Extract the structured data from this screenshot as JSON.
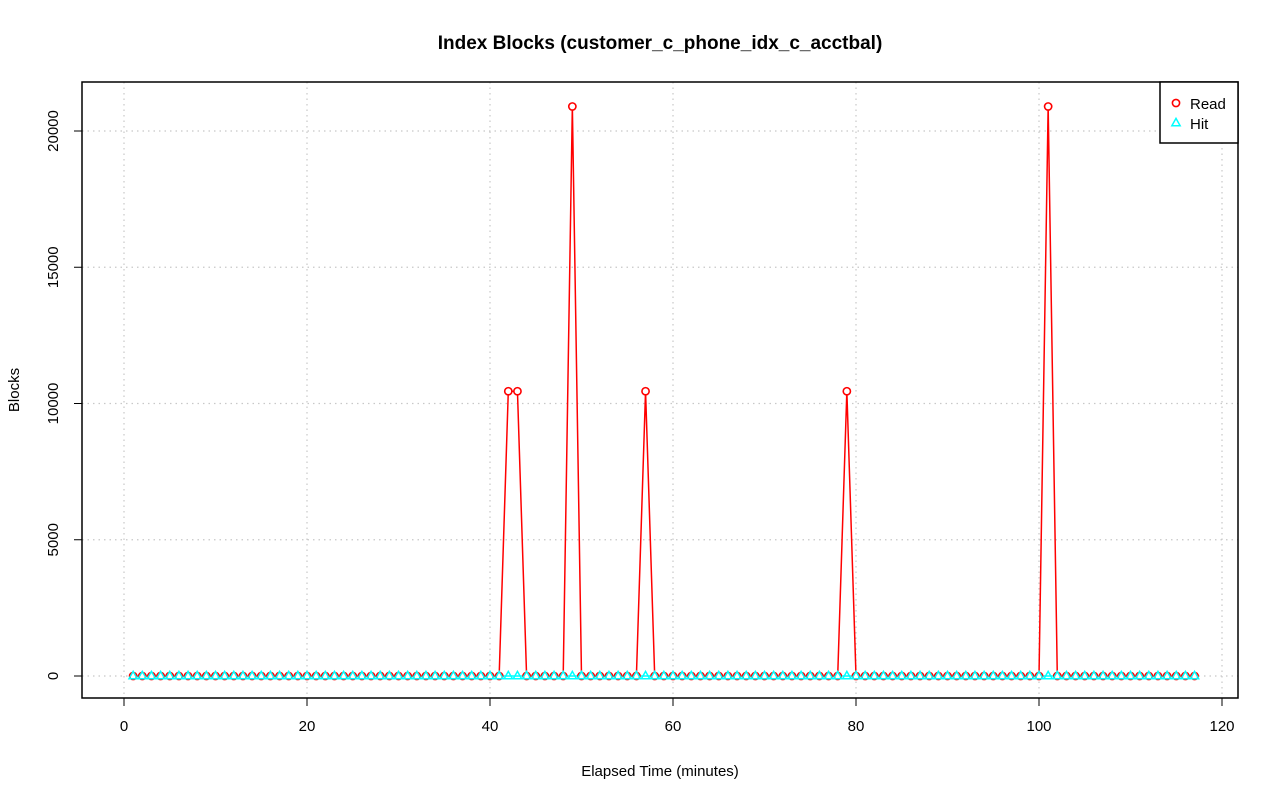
{
  "chart_data": {
    "type": "line",
    "title": "Index Blocks (customer_c_phone_idx_c_acctbal)",
    "xlabel": "Elapsed Time (minutes)",
    "ylabel": "Blocks",
    "xlim": [
      0,
      120
    ],
    "ylim": [
      0,
      21000
    ],
    "x_ticks": [
      0,
      20,
      40,
      60,
      80,
      100,
      120
    ],
    "y_ticks": [
      0,
      5000,
      10000,
      15000,
      20000
    ],
    "grid": true,
    "legend_position": "top-right",
    "x": [
      1,
      2,
      3,
      4,
      5,
      6,
      7,
      8,
      9,
      10,
      11,
      12,
      13,
      14,
      15,
      16,
      17,
      18,
      19,
      20,
      21,
      22,
      23,
      24,
      25,
      26,
      27,
      28,
      29,
      30,
      31,
      32,
      33,
      34,
      35,
      36,
      37,
      38,
      39,
      40,
      41,
      42,
      43,
      44,
      45,
      46,
      47,
      48,
      49,
      50,
      51,
      52,
      53,
      54,
      55,
      56,
      57,
      58,
      59,
      60,
      61,
      62,
      63,
      64,
      65,
      66,
      67,
      68,
      69,
      70,
      71,
      72,
      73,
      74,
      75,
      76,
      77,
      78,
      79,
      80,
      81,
      82,
      83,
      84,
      85,
      86,
      87,
      88,
      89,
      90,
      91,
      92,
      93,
      94,
      95,
      96,
      97,
      98,
      99,
      100,
      101,
      102,
      103,
      104,
      105,
      106,
      107,
      108,
      109,
      110,
      111,
      112,
      113,
      114,
      115,
      116,
      117
    ],
    "series": [
      {
        "name": "Read",
        "color": "#ff0000",
        "marker": "circle",
        "values": [
          0,
          0,
          0,
          0,
          0,
          0,
          0,
          0,
          0,
          0,
          0,
          0,
          0,
          0,
          0,
          0,
          0,
          0,
          0,
          0,
          0,
          0,
          0,
          0,
          0,
          0,
          0,
          0,
          0,
          0,
          0,
          0,
          0,
          0,
          0,
          0,
          0,
          0,
          0,
          0,
          0,
          10450,
          10450,
          0,
          0,
          0,
          0,
          0,
          20900,
          0,
          0,
          0,
          0,
          0,
          0,
          0,
          10450,
          0,
          0,
          0,
          0,
          0,
          0,
          0,
          0,
          0,
          0,
          0,
          0,
          0,
          0,
          0,
          0,
          0,
          0,
          0,
          0,
          0,
          10450,
          0,
          0,
          0,
          0,
          0,
          0,
          0,
          0,
          0,
          0,
          0,
          0,
          0,
          0,
          0,
          0,
          0,
          0,
          0,
          0,
          0,
          20900,
          0,
          0,
          0,
          0,
          0,
          0,
          0,
          0,
          0,
          0,
          0,
          0,
          0,
          0,
          0,
          0
        ]
      },
      {
        "name": "Hit",
        "color": "#00ffff",
        "marker": "triangle",
        "values": [
          0,
          0,
          0,
          0,
          0,
          0,
          0,
          0,
          0,
          0,
          0,
          0,
          0,
          0,
          0,
          0,
          0,
          0,
          0,
          0,
          0,
          0,
          0,
          0,
          0,
          0,
          0,
          0,
          0,
          0,
          0,
          0,
          0,
          0,
          0,
          0,
          0,
          0,
          0,
          0,
          0,
          0,
          0,
          0,
          0,
          0,
          0,
          0,
          0,
          0,
          0,
          0,
          0,
          0,
          0,
          0,
          0,
          0,
          0,
          0,
          0,
          0,
          0,
          0,
          0,
          0,
          0,
          0,
          0,
          0,
          0,
          0,
          0,
          0,
          0,
          0,
          0,
          0,
          0,
          0,
          0,
          0,
          0,
          0,
          0,
          0,
          0,
          0,
          0,
          0,
          0,
          0,
          0,
          0,
          0,
          0,
          0,
          0,
          0,
          0,
          0,
          0,
          0,
          0,
          0,
          0,
          0,
          0,
          0,
          0,
          0,
          0,
          0,
          0,
          0,
          0,
          0
        ]
      }
    ]
  }
}
